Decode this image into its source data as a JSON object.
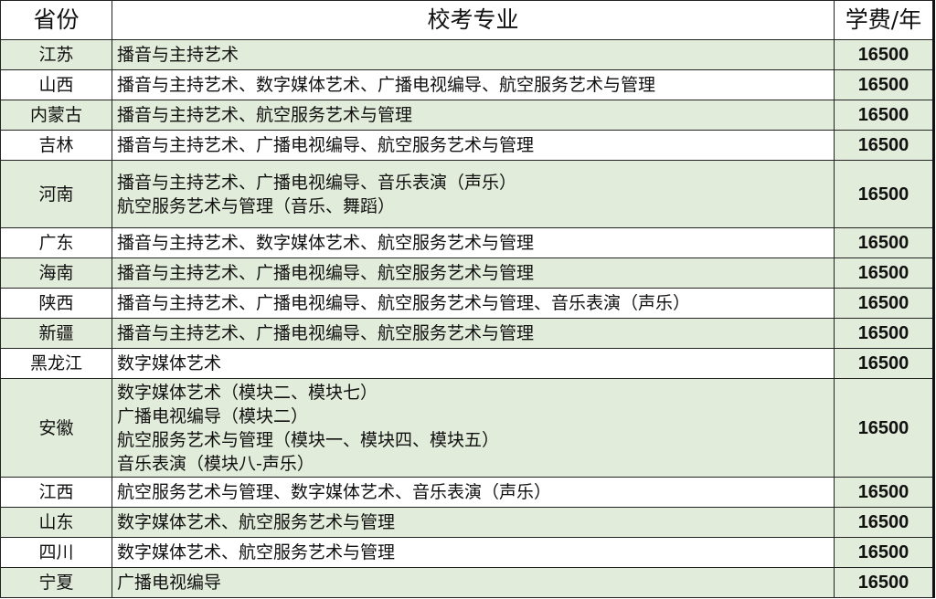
{
  "headers": {
    "province": "省份",
    "major": "校考专业",
    "fee": "学费/年"
  },
  "colors": {
    "row_green": "#e2ecda",
    "row_white": "#ffffff",
    "border": "#222222"
  },
  "rows": [
    {
      "province": "江苏",
      "majors": [
        "播音与主持艺术"
      ],
      "fee": "16500"
    },
    {
      "province": "山西",
      "majors": [
        "播音与主持艺术、数字媒体艺术、广播电视编导、航空服务艺术与管理"
      ],
      "fee": "16500"
    },
    {
      "province": "内蒙古",
      "majors": [
        "播音与主持艺术、航空服务艺术与管理"
      ],
      "fee": "16500"
    },
    {
      "province": "吉林",
      "majors": [
        "播音与主持艺术、广播电视编导、航空服务艺术与管理"
      ],
      "fee": "16500"
    },
    {
      "province": "河南",
      "majors": [
        "播音与主持艺术、广播电视编导、音乐表演（声乐）",
        "航空服务艺术与管理（音乐、舞蹈）"
      ],
      "fee": "16500"
    },
    {
      "province": "广东",
      "majors": [
        "播音与主持艺术、数字媒体艺术、航空服务艺术与管理"
      ],
      "fee": "16500"
    },
    {
      "province": "海南",
      "majors": [
        "播音与主持艺术、广播电视编导、航空服务艺术与管理"
      ],
      "fee": "16500"
    },
    {
      "province": "陕西",
      "majors": [
        "播音与主持艺术、广播电视编导、航空服务艺术与管理、音乐表演（声乐）"
      ],
      "fee": "16500"
    },
    {
      "province": "新疆",
      "majors": [
        "播音与主持艺术、广播电视编导、航空服务艺术与管理"
      ],
      "fee": "16500"
    },
    {
      "province": "黑龙江",
      "majors": [
        "数字媒体艺术"
      ],
      "fee": "16500"
    },
    {
      "province": "安徽",
      "majors": [
        "数字媒体艺术（模块二、模块七）",
        "广播电视编导（模块二）",
        "航空服务艺术与管理（模块一、模块四、模块五）",
        "音乐表演（模块八-声乐）"
      ],
      "fee": "16500"
    },
    {
      "province": "江西",
      "majors": [
        "航空服务艺术与管理、数字媒体艺术、音乐表演（声乐）"
      ],
      "fee": "16500"
    },
    {
      "province": "山东",
      "majors": [
        "数字媒体艺术、航空服务艺术与管理"
      ],
      "fee": "16500"
    },
    {
      "province": "四川",
      "majors": [
        "数字媒体艺术、航空服务艺术与管理"
      ],
      "fee": "16500"
    },
    {
      "province": "宁夏",
      "majors": [
        "广播电视编导"
      ],
      "fee": "16500"
    }
  ]
}
